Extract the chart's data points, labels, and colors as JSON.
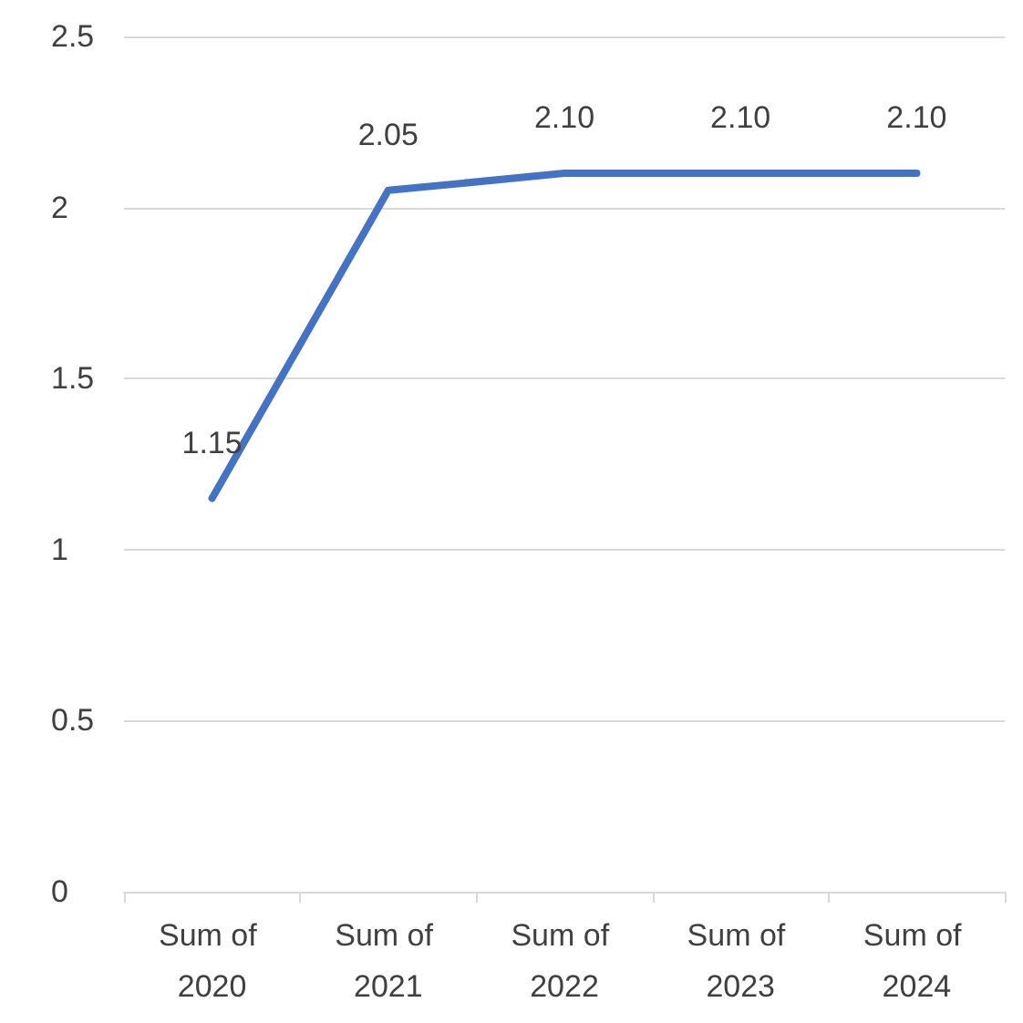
{
  "chart_data": {
    "type": "line",
    "categories": [
      "Sum of 2020",
      "Sum of 2021",
      "Sum of 2022",
      "Sum of 2023",
      "Sum of 2024"
    ],
    "series": [
      {
        "color": "#4472c4",
        "values": [
          1.15,
          2.05,
          2.1,
          2.1,
          2.1
        ],
        "value_labels": [
          "1.15",
          "2.05",
          "2.10",
          "2.10",
          "2.10"
        ]
      }
    ],
    "ylim": [
      0,
      2.5
    ],
    "yticks": [
      0,
      0.5,
      1,
      1.5,
      2,
      2.5
    ],
    "grid": "y",
    "marker": "none",
    "line_style": "solid"
  }
}
